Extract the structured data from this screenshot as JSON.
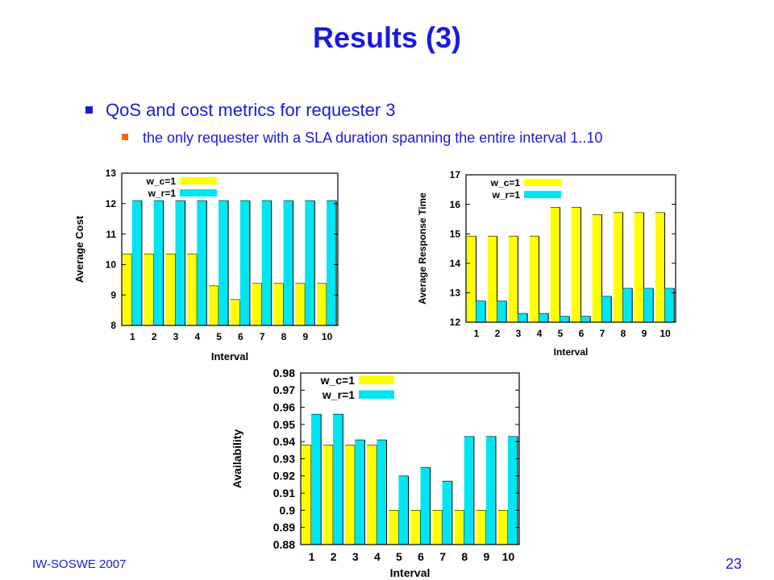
{
  "slide": {
    "title": "Results (3)",
    "bullet1": "QoS and cost metrics for requester 3",
    "bullet2": "the only requester with a SLA duration spanning the entire interval 1..10",
    "footer": "IW-SOSWE 2007",
    "page_number": "23"
  },
  "colors": {
    "title": "#1a1adc",
    "series1": "#ffff00",
    "series2": "#00e5f2",
    "bullet2_marker": "#ff6600"
  },
  "chart_data": [
    {
      "type": "bar",
      "xlabel": "Interval",
      "ylabel": "Average Cost",
      "categories": [
        "1",
        "2",
        "3",
        "4",
        "5",
        "6",
        "7",
        "8",
        "9",
        "10"
      ],
      "ylim": [
        8,
        13
      ],
      "yticks": [
        "8",
        "9",
        "10",
        "11",
        "12",
        "13"
      ],
      "legend_position": "top-left",
      "series": [
        {
          "name": "w_c=1",
          "values": [
            10.35,
            10.35,
            10.35,
            10.35,
            9.3,
            8.85,
            9.38,
            9.38,
            9.38,
            9.38
          ]
        },
        {
          "name": "w_r=1",
          "values": [
            12.1,
            12.1,
            12.1,
            12.1,
            12.1,
            12.1,
            12.1,
            12.1,
            12.1,
            12.1
          ]
        }
      ]
    },
    {
      "type": "bar",
      "xlabel": "Interval",
      "ylabel": "Average Response Time",
      "categories": [
        "1",
        "2",
        "3",
        "4",
        "5",
        "6",
        "7",
        "8",
        "9",
        "10"
      ],
      "ylim": [
        12,
        17
      ],
      "yticks": [
        "12",
        "13",
        "14",
        "15",
        "16",
        "17"
      ],
      "legend_position": "top-left",
      "series": [
        {
          "name": "w_c=1",
          "values": [
            14.92,
            14.92,
            14.92,
            14.92,
            15.9,
            15.9,
            15.65,
            15.72,
            15.72,
            15.72
          ]
        },
        {
          "name": "w_r=1",
          "values": [
            12.72,
            12.72,
            12.3,
            12.3,
            12.2,
            12.2,
            12.88,
            13.15,
            13.15,
            13.15
          ]
        }
      ]
    },
    {
      "type": "bar",
      "xlabel": "Interval",
      "ylabel": "Availability",
      "categories": [
        "1",
        "2",
        "3",
        "4",
        "5",
        "6",
        "7",
        "8",
        "9",
        "10"
      ],
      "ylim": [
        0.88,
        0.98
      ],
      "yticks": [
        "0.88",
        "0.89",
        "0.9",
        "0.91",
        "0.92",
        "0.93",
        "0.94",
        "0.95",
        "0.96",
        "0.97",
        "0.98"
      ],
      "legend_position": "top-left",
      "series": [
        {
          "name": "w_c=1",
          "values": [
            0.938,
            0.938,
            0.938,
            0.938,
            0.9,
            0.9,
            0.9,
            0.9,
            0.9,
            0.9
          ]
        },
        {
          "name": "w_r=1",
          "values": [
            0.956,
            0.956,
            0.941,
            0.941,
            0.92,
            0.925,
            0.917,
            0.943,
            0.943,
            0.943
          ]
        }
      ]
    }
  ]
}
